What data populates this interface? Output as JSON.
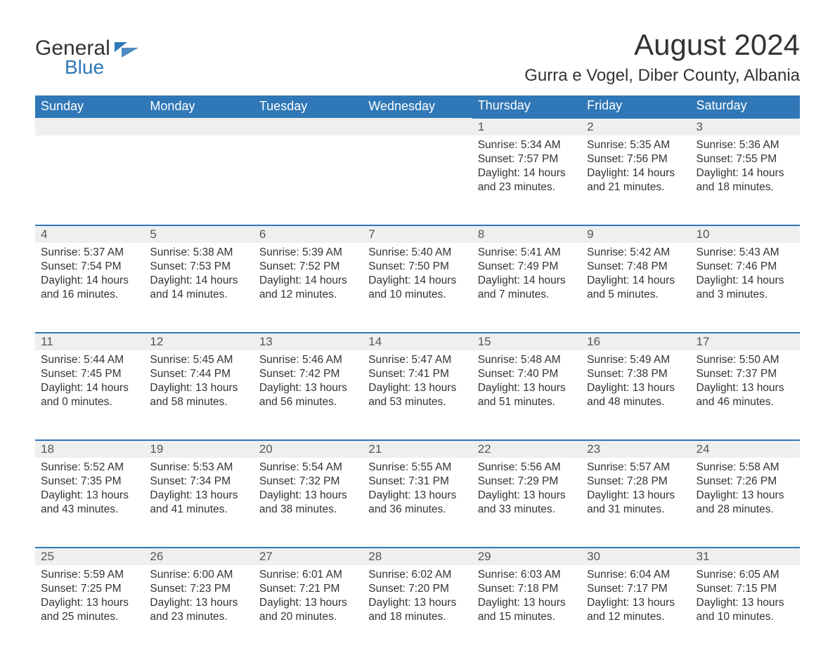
{
  "brand": {
    "word1": "General",
    "word2": "Blue",
    "accent_color": "#2f77b7"
  },
  "title": "August 2024",
  "subtitle": "Gurra e Vogel, Diber County, Albania",
  "colors": {
    "header_bg": "#2f77b7",
    "header_text": "#ffffff",
    "daynum_bg": "#efefef",
    "row_border": "#2f77b7",
    "body_text": "#333333",
    "page_bg": "#ffffff"
  },
  "typography": {
    "title_fontsize": 42,
    "subtitle_fontsize": 24,
    "header_fontsize": 18,
    "cell_fontsize": 15.5,
    "font_family": "Arial"
  },
  "day_labels": [
    "Sunday",
    "Monday",
    "Tuesday",
    "Wednesday",
    "Thursday",
    "Friday",
    "Saturday"
  ],
  "weeks": [
    [
      null,
      null,
      null,
      null,
      {
        "n": "1",
        "sr": "Sunrise: 5:34 AM",
        "ss": "Sunset: 7:57 PM",
        "dl": "Daylight: 14 hours and 23 minutes."
      },
      {
        "n": "2",
        "sr": "Sunrise: 5:35 AM",
        "ss": "Sunset: 7:56 PM",
        "dl": "Daylight: 14 hours and 21 minutes."
      },
      {
        "n": "3",
        "sr": "Sunrise: 5:36 AM",
        "ss": "Sunset: 7:55 PM",
        "dl": "Daylight: 14 hours and 18 minutes."
      }
    ],
    [
      {
        "n": "4",
        "sr": "Sunrise: 5:37 AM",
        "ss": "Sunset: 7:54 PM",
        "dl": "Daylight: 14 hours and 16 minutes."
      },
      {
        "n": "5",
        "sr": "Sunrise: 5:38 AM",
        "ss": "Sunset: 7:53 PM",
        "dl": "Daylight: 14 hours and 14 minutes."
      },
      {
        "n": "6",
        "sr": "Sunrise: 5:39 AM",
        "ss": "Sunset: 7:52 PM",
        "dl": "Daylight: 14 hours and 12 minutes."
      },
      {
        "n": "7",
        "sr": "Sunrise: 5:40 AM",
        "ss": "Sunset: 7:50 PM",
        "dl": "Daylight: 14 hours and 10 minutes."
      },
      {
        "n": "8",
        "sr": "Sunrise: 5:41 AM",
        "ss": "Sunset: 7:49 PM",
        "dl": "Daylight: 14 hours and 7 minutes."
      },
      {
        "n": "9",
        "sr": "Sunrise: 5:42 AM",
        "ss": "Sunset: 7:48 PM",
        "dl": "Daylight: 14 hours and 5 minutes."
      },
      {
        "n": "10",
        "sr": "Sunrise: 5:43 AM",
        "ss": "Sunset: 7:46 PM",
        "dl": "Daylight: 14 hours and 3 minutes."
      }
    ],
    [
      {
        "n": "11",
        "sr": "Sunrise: 5:44 AM",
        "ss": "Sunset: 7:45 PM",
        "dl": "Daylight: 14 hours and 0 minutes."
      },
      {
        "n": "12",
        "sr": "Sunrise: 5:45 AM",
        "ss": "Sunset: 7:44 PM",
        "dl": "Daylight: 13 hours and 58 minutes."
      },
      {
        "n": "13",
        "sr": "Sunrise: 5:46 AM",
        "ss": "Sunset: 7:42 PM",
        "dl": "Daylight: 13 hours and 56 minutes."
      },
      {
        "n": "14",
        "sr": "Sunrise: 5:47 AM",
        "ss": "Sunset: 7:41 PM",
        "dl": "Daylight: 13 hours and 53 minutes."
      },
      {
        "n": "15",
        "sr": "Sunrise: 5:48 AM",
        "ss": "Sunset: 7:40 PM",
        "dl": "Daylight: 13 hours and 51 minutes."
      },
      {
        "n": "16",
        "sr": "Sunrise: 5:49 AM",
        "ss": "Sunset: 7:38 PM",
        "dl": "Daylight: 13 hours and 48 minutes."
      },
      {
        "n": "17",
        "sr": "Sunrise: 5:50 AM",
        "ss": "Sunset: 7:37 PM",
        "dl": "Daylight: 13 hours and 46 minutes."
      }
    ],
    [
      {
        "n": "18",
        "sr": "Sunrise: 5:52 AM",
        "ss": "Sunset: 7:35 PM",
        "dl": "Daylight: 13 hours and 43 minutes."
      },
      {
        "n": "19",
        "sr": "Sunrise: 5:53 AM",
        "ss": "Sunset: 7:34 PM",
        "dl": "Daylight: 13 hours and 41 minutes."
      },
      {
        "n": "20",
        "sr": "Sunrise: 5:54 AM",
        "ss": "Sunset: 7:32 PM",
        "dl": "Daylight: 13 hours and 38 minutes."
      },
      {
        "n": "21",
        "sr": "Sunrise: 5:55 AM",
        "ss": "Sunset: 7:31 PM",
        "dl": "Daylight: 13 hours and 36 minutes."
      },
      {
        "n": "22",
        "sr": "Sunrise: 5:56 AM",
        "ss": "Sunset: 7:29 PM",
        "dl": "Daylight: 13 hours and 33 minutes."
      },
      {
        "n": "23",
        "sr": "Sunrise: 5:57 AM",
        "ss": "Sunset: 7:28 PM",
        "dl": "Daylight: 13 hours and 31 minutes."
      },
      {
        "n": "24",
        "sr": "Sunrise: 5:58 AM",
        "ss": "Sunset: 7:26 PM",
        "dl": "Daylight: 13 hours and 28 minutes."
      }
    ],
    [
      {
        "n": "25",
        "sr": "Sunrise: 5:59 AM",
        "ss": "Sunset: 7:25 PM",
        "dl": "Daylight: 13 hours and 25 minutes."
      },
      {
        "n": "26",
        "sr": "Sunrise: 6:00 AM",
        "ss": "Sunset: 7:23 PM",
        "dl": "Daylight: 13 hours and 23 minutes."
      },
      {
        "n": "27",
        "sr": "Sunrise: 6:01 AM",
        "ss": "Sunset: 7:21 PM",
        "dl": "Daylight: 13 hours and 20 minutes."
      },
      {
        "n": "28",
        "sr": "Sunrise: 6:02 AM",
        "ss": "Sunset: 7:20 PM",
        "dl": "Daylight: 13 hours and 18 minutes."
      },
      {
        "n": "29",
        "sr": "Sunrise: 6:03 AM",
        "ss": "Sunset: 7:18 PM",
        "dl": "Daylight: 13 hours and 15 minutes."
      },
      {
        "n": "30",
        "sr": "Sunrise: 6:04 AM",
        "ss": "Sunset: 7:17 PM",
        "dl": "Daylight: 13 hours and 12 minutes."
      },
      {
        "n": "31",
        "sr": "Sunrise: 6:05 AM",
        "ss": "Sunset: 7:15 PM",
        "dl": "Daylight: 13 hours and 10 minutes."
      }
    ]
  ]
}
